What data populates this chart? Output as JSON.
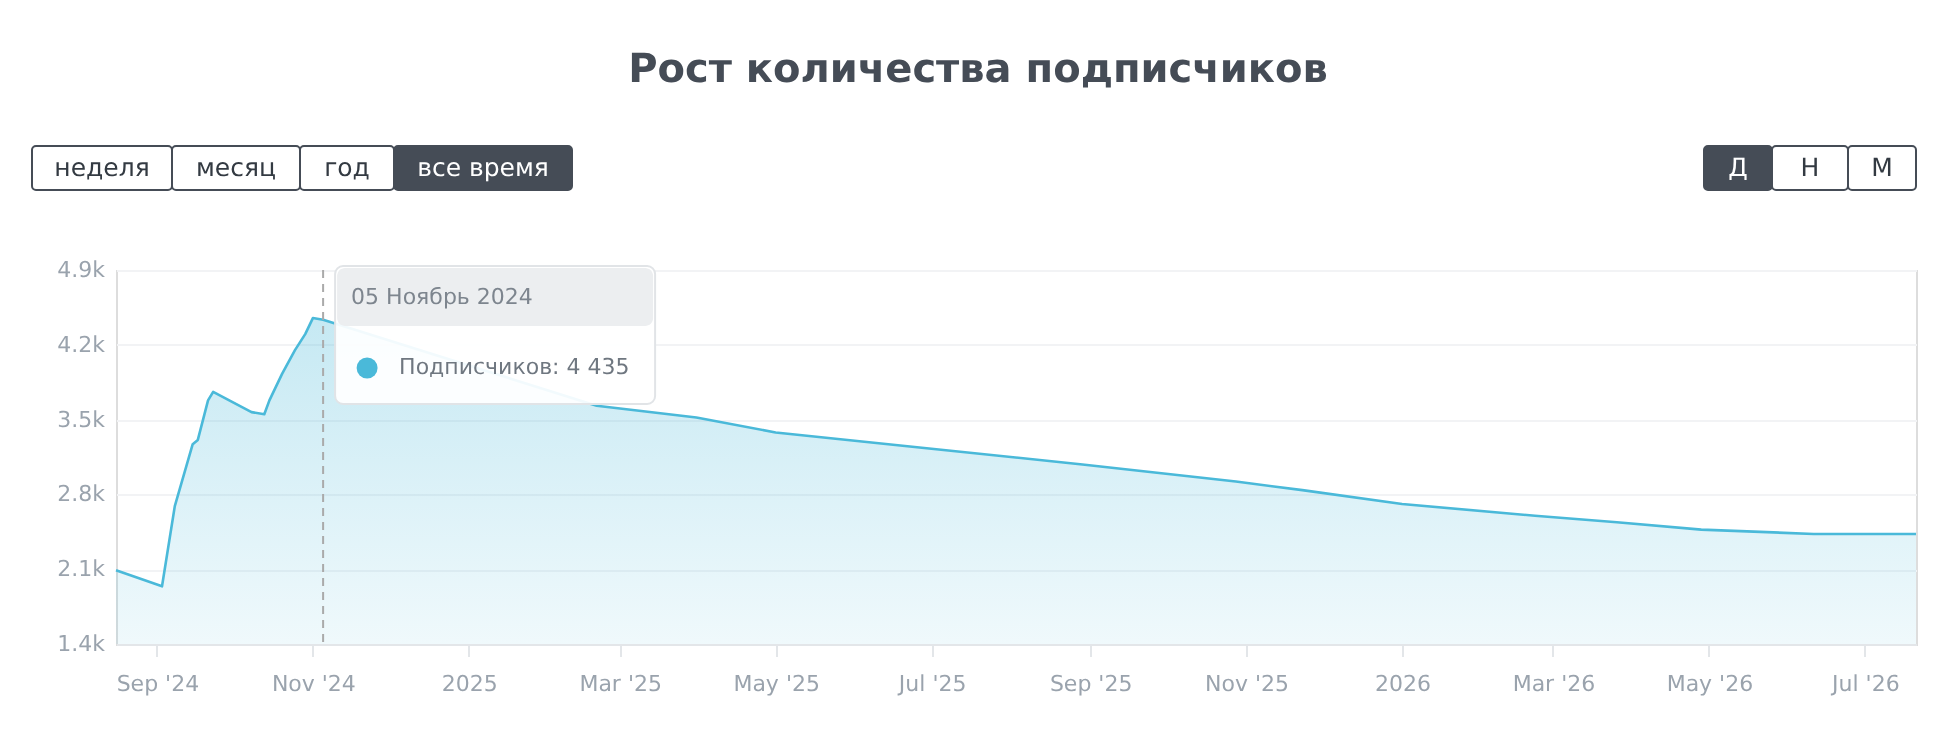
{
  "chart_data": {
    "type": "area",
    "title": "Рост количества подписчиков",
    "x": [
      "2024-08-16",
      "2024-09-03",
      "2024-09-08",
      "2024-09-15",
      "2024-09-17",
      "2024-09-21",
      "2024-09-23",
      "2024-10-08",
      "2024-10-13",
      "2024-10-15",
      "2024-10-20",
      "2024-10-25",
      "2024-10-29",
      "2024-11-01",
      "2024-11-05",
      "2025-02-20",
      "2025-03-31",
      "2025-05-01",
      "2025-06-30",
      "2025-08-29",
      "2025-10-28",
      "2025-11-23",
      "2026-01-01",
      "2026-02-22",
      "2026-03-26",
      "2026-04-28",
      "2026-06-11",
      "2026-07-21"
    ],
    "series": [
      {
        "color": "#4ab9d9",
        "values": [
          2090,
          1940,
          2690,
          3270,
          3310,
          3680,
          3760,
          3570,
          3550,
          3680,
          3930,
          4150,
          4300,
          4450,
          4435,
          3630,
          3520,
          3380,
          3230,
          3080,
          2920,
          2840,
          2710,
          2600,
          2540,
          2470,
          2430,
          2430
        ]
      }
    ],
    "xlim": [
      "2024-08-16",
      "2026-07-21"
    ],
    "xticks": [
      {
        "value": "2024-09-01",
        "label": "Sep '24"
      },
      {
        "value": "2024-11-01",
        "label": "Nov '24"
      },
      {
        "value": "2025-01-01",
        "label": "2025"
      },
      {
        "value": "2025-03-01",
        "label": "Mar '25"
      },
      {
        "value": "2025-05-01",
        "label": "May '25"
      },
      {
        "value": "2025-07-01",
        "label": "Jul '25"
      },
      {
        "value": "2025-09-01",
        "label": "Sep '25"
      },
      {
        "value": "2025-11-01",
        "label": "Nov '25"
      },
      {
        "value": "2026-01-01",
        "label": "2026"
      },
      {
        "value": "2026-03-01",
        "label": "Mar '26"
      },
      {
        "value": "2026-05-01",
        "label": "May '26"
      },
      {
        "value": "2026-07-01",
        "label": "Jul '26"
      }
    ],
    "ylim": [
      1400,
      4900
    ],
    "yticks": [
      {
        "value": 1400,
        "label": "1.4k"
      },
      {
        "value": 2100,
        "label": "2.1k"
      },
      {
        "value": 2800,
        "label": "2.8k"
      },
      {
        "value": 3500,
        "label": "3.5k"
      },
      {
        "value": 4200,
        "label": "4.2k"
      },
      {
        "value": 4900,
        "label": "4.9k"
      }
    ],
    "grid": "y",
    "ref_lines": [
      {
        "axis": "x",
        "value": "2024-11-05",
        "color": "#aaaaaa",
        "line_style": "dashed"
      }
    ],
    "annotations": [
      "неделя",
      "месяц",
      "год",
      "все время",
      "Д",
      "Н",
      "М",
      "05 Ноябрь 2024",
      "Подписчиков: 4 435"
    ]
  }
}
